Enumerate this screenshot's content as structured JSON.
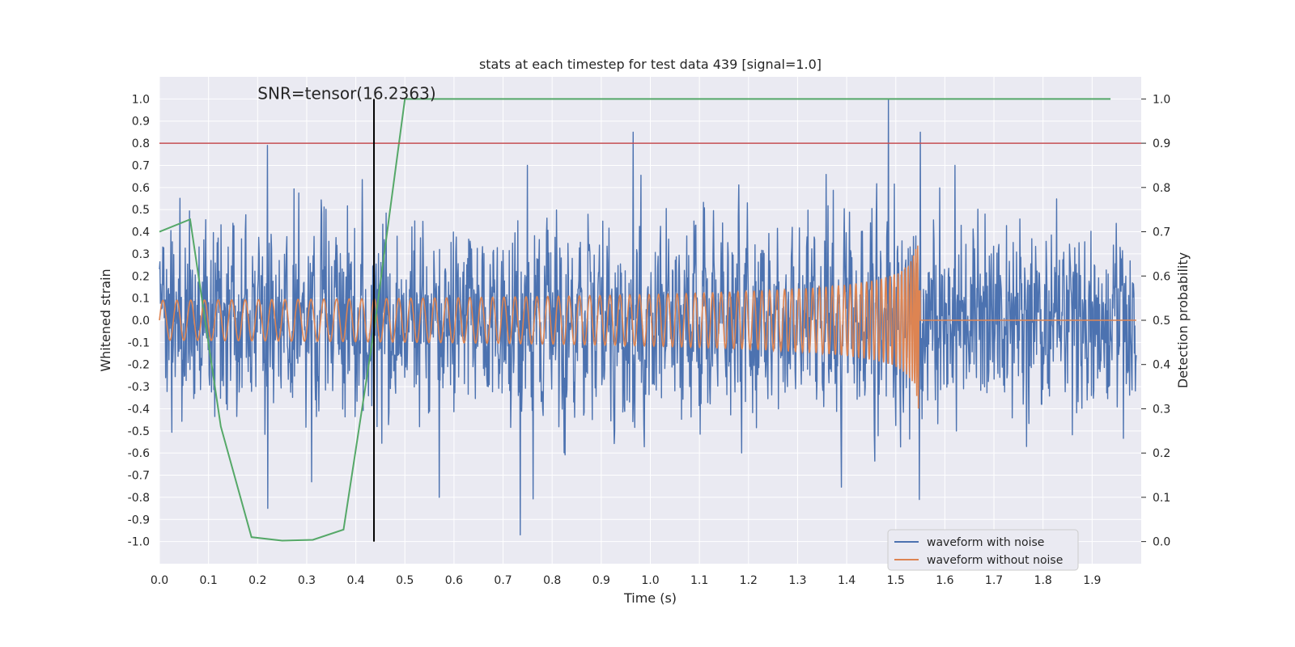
{
  "chart_data": {
    "type": "line",
    "title": "stats at each timestep for test data 439 [signal=1.0]",
    "xlabel": "Time (s)",
    "ylabel": "Whitened strain",
    "y2label": "Detection probability",
    "xlim": [
      0.0,
      2.0
    ],
    "ylim": [
      -1.1,
      1.1
    ],
    "y2lim": [
      -0.05,
      1.05
    ],
    "x_ticks": [
      "0.0",
      "0.1",
      "0.2",
      "0.3",
      "0.4",
      "0.5",
      "0.6",
      "0.7",
      "0.8",
      "0.9",
      "1.0",
      "1.1",
      "1.2",
      "1.3",
      "1.4",
      "1.5",
      "1.6",
      "1.7",
      "1.8",
      "1.9"
    ],
    "y_ticks": [
      "1.0",
      "0.9",
      "0.8",
      "0.7",
      "0.6",
      "0.5",
      "0.4",
      "0.3",
      "0.2",
      "0.1",
      "0.0",
      "-0.1",
      "-0.2",
      "-0.3",
      "-0.4",
      "-0.5",
      "-0.6",
      "-0.7",
      "-0.8",
      "-0.9",
      "-1.0"
    ],
    "y2_ticks": [
      "1.0",
      "0.9",
      "0.8",
      "0.7",
      "0.6",
      "0.5",
      "0.4",
      "0.3",
      "0.2",
      "0.1",
      "0.0"
    ],
    "grid": true,
    "legend_placement": "lower-right",
    "annotation": "SNR=tensor(16.2363)",
    "annotation_x": 0.2,
    "vertical_marker_x": 0.437,
    "horizontal_threshold_y2": 0.9,
    "series": [
      {
        "name": "waveform with noise",
        "axis": "left",
        "color": "#4c72b0",
        "t_start": 0.0,
        "t_end": 1.99,
        "n_samples": 2048,
        "amplitude_envelope": 0.42,
        "peaks": [
          [
            0.22,
            0.79
          ],
          [
            0.735,
            -0.97
          ],
          [
            0.965,
            0.85
          ],
          [
            1.485,
            1.0
          ],
          [
            1.55,
            0.85
          ],
          [
            1.548,
            -0.81
          ],
          [
            0.31,
            -0.73
          ],
          [
            0.57,
            -0.8
          ]
        ]
      },
      {
        "name": "waveform without noise",
        "axis": "left",
        "color": "#dd8452",
        "t_start": 0.0,
        "t_end": 1.99,
        "chirp_start_freq_hz": 35,
        "chirp_end_freq_hz": 250,
        "merger_time": 1.55,
        "start_amplitude": 0.09,
        "peak_amplitude": 0.42
      },
      {
        "name": "detection probability",
        "axis": "right",
        "color": "#55a868",
        "x": [
          0.0,
          0.0625,
          0.125,
          0.1875,
          0.25,
          0.3125,
          0.375,
          0.4375,
          0.5,
          0.5625,
          0.625,
          1.9375
        ],
        "y": [
          0.7,
          0.728,
          0.26,
          0.01,
          0.002,
          0.004,
          0.027,
          0.48,
          1.0,
          1.0,
          1.0,
          1.0
        ]
      }
    ],
    "colors": {
      "plot_bg": "#eaeaf2",
      "grid": "#ffffff",
      "threshold": "#c44e52",
      "marker": "#000000"
    }
  }
}
